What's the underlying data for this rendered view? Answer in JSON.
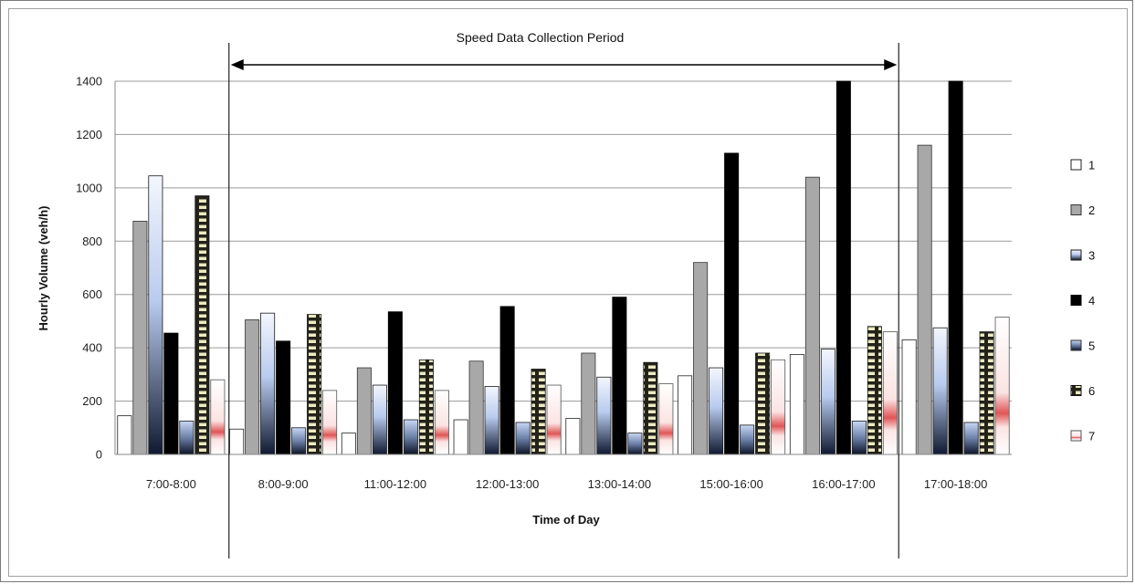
{
  "chart_data": {
    "type": "bar",
    "title": "",
    "xlabel": "Time of Day",
    "ylabel": "Hourly Volume (veh/h)",
    "ylim": [
      0,
      1400
    ],
    "yticks": [
      0,
      200,
      400,
      600,
      800,
      1000,
      1200,
      1400
    ],
    "grid": true,
    "legend_position": "right",
    "annotation": "Speed Data Collection Period",
    "categories": [
      "7:00-8:00",
      "8:00-9:00",
      "11:00-12:00",
      "12:00-13:00",
      "13:00-14:00",
      "15:00-16:00",
      "16:00-17:00",
      "17:00-18:00"
    ],
    "series": [
      {
        "name": "1",
        "values": [
          145,
          95,
          80,
          130,
          135,
          295,
          375,
          430
        ]
      },
      {
        "name": "2",
        "values": [
          875,
          505,
          325,
          350,
          380,
          720,
          1040,
          1160
        ]
      },
      {
        "name": "3",
        "values": [
          1045,
          530,
          260,
          255,
          290,
          325,
          395,
          475
        ]
      },
      {
        "name": "4",
        "values": [
          455,
          425,
          535,
          555,
          590,
          1130,
          1400,
          1400
        ]
      },
      {
        "name": "5",
        "values": [
          125,
          100,
          130,
          120,
          80,
          110,
          125,
          120
        ]
      },
      {
        "name": "6",
        "values": [
          970,
          525,
          355,
          320,
          345,
          380,
          480,
          460
        ]
      },
      {
        "name": "7",
        "values": [
          280,
          240,
          240,
          260,
          265,
          355,
          460,
          515
        ]
      }
    ]
  },
  "colors": {
    "s1": "#ffffff",
    "s2": "#a6a6a6",
    "s3_top": "#e6eefb",
    "s3_bottom": "#1f2d4a",
    "s4": "#000000",
    "s5_top": "#d7e3f8",
    "s5_bottom": "#10182a",
    "s6_fill": "#2b2b1c",
    "s6_pattern": "#e9e6b8",
    "s7_base": "#fbeeee",
    "s7_mark": "#d83a3a",
    "grid": "#9a9a9a"
  }
}
